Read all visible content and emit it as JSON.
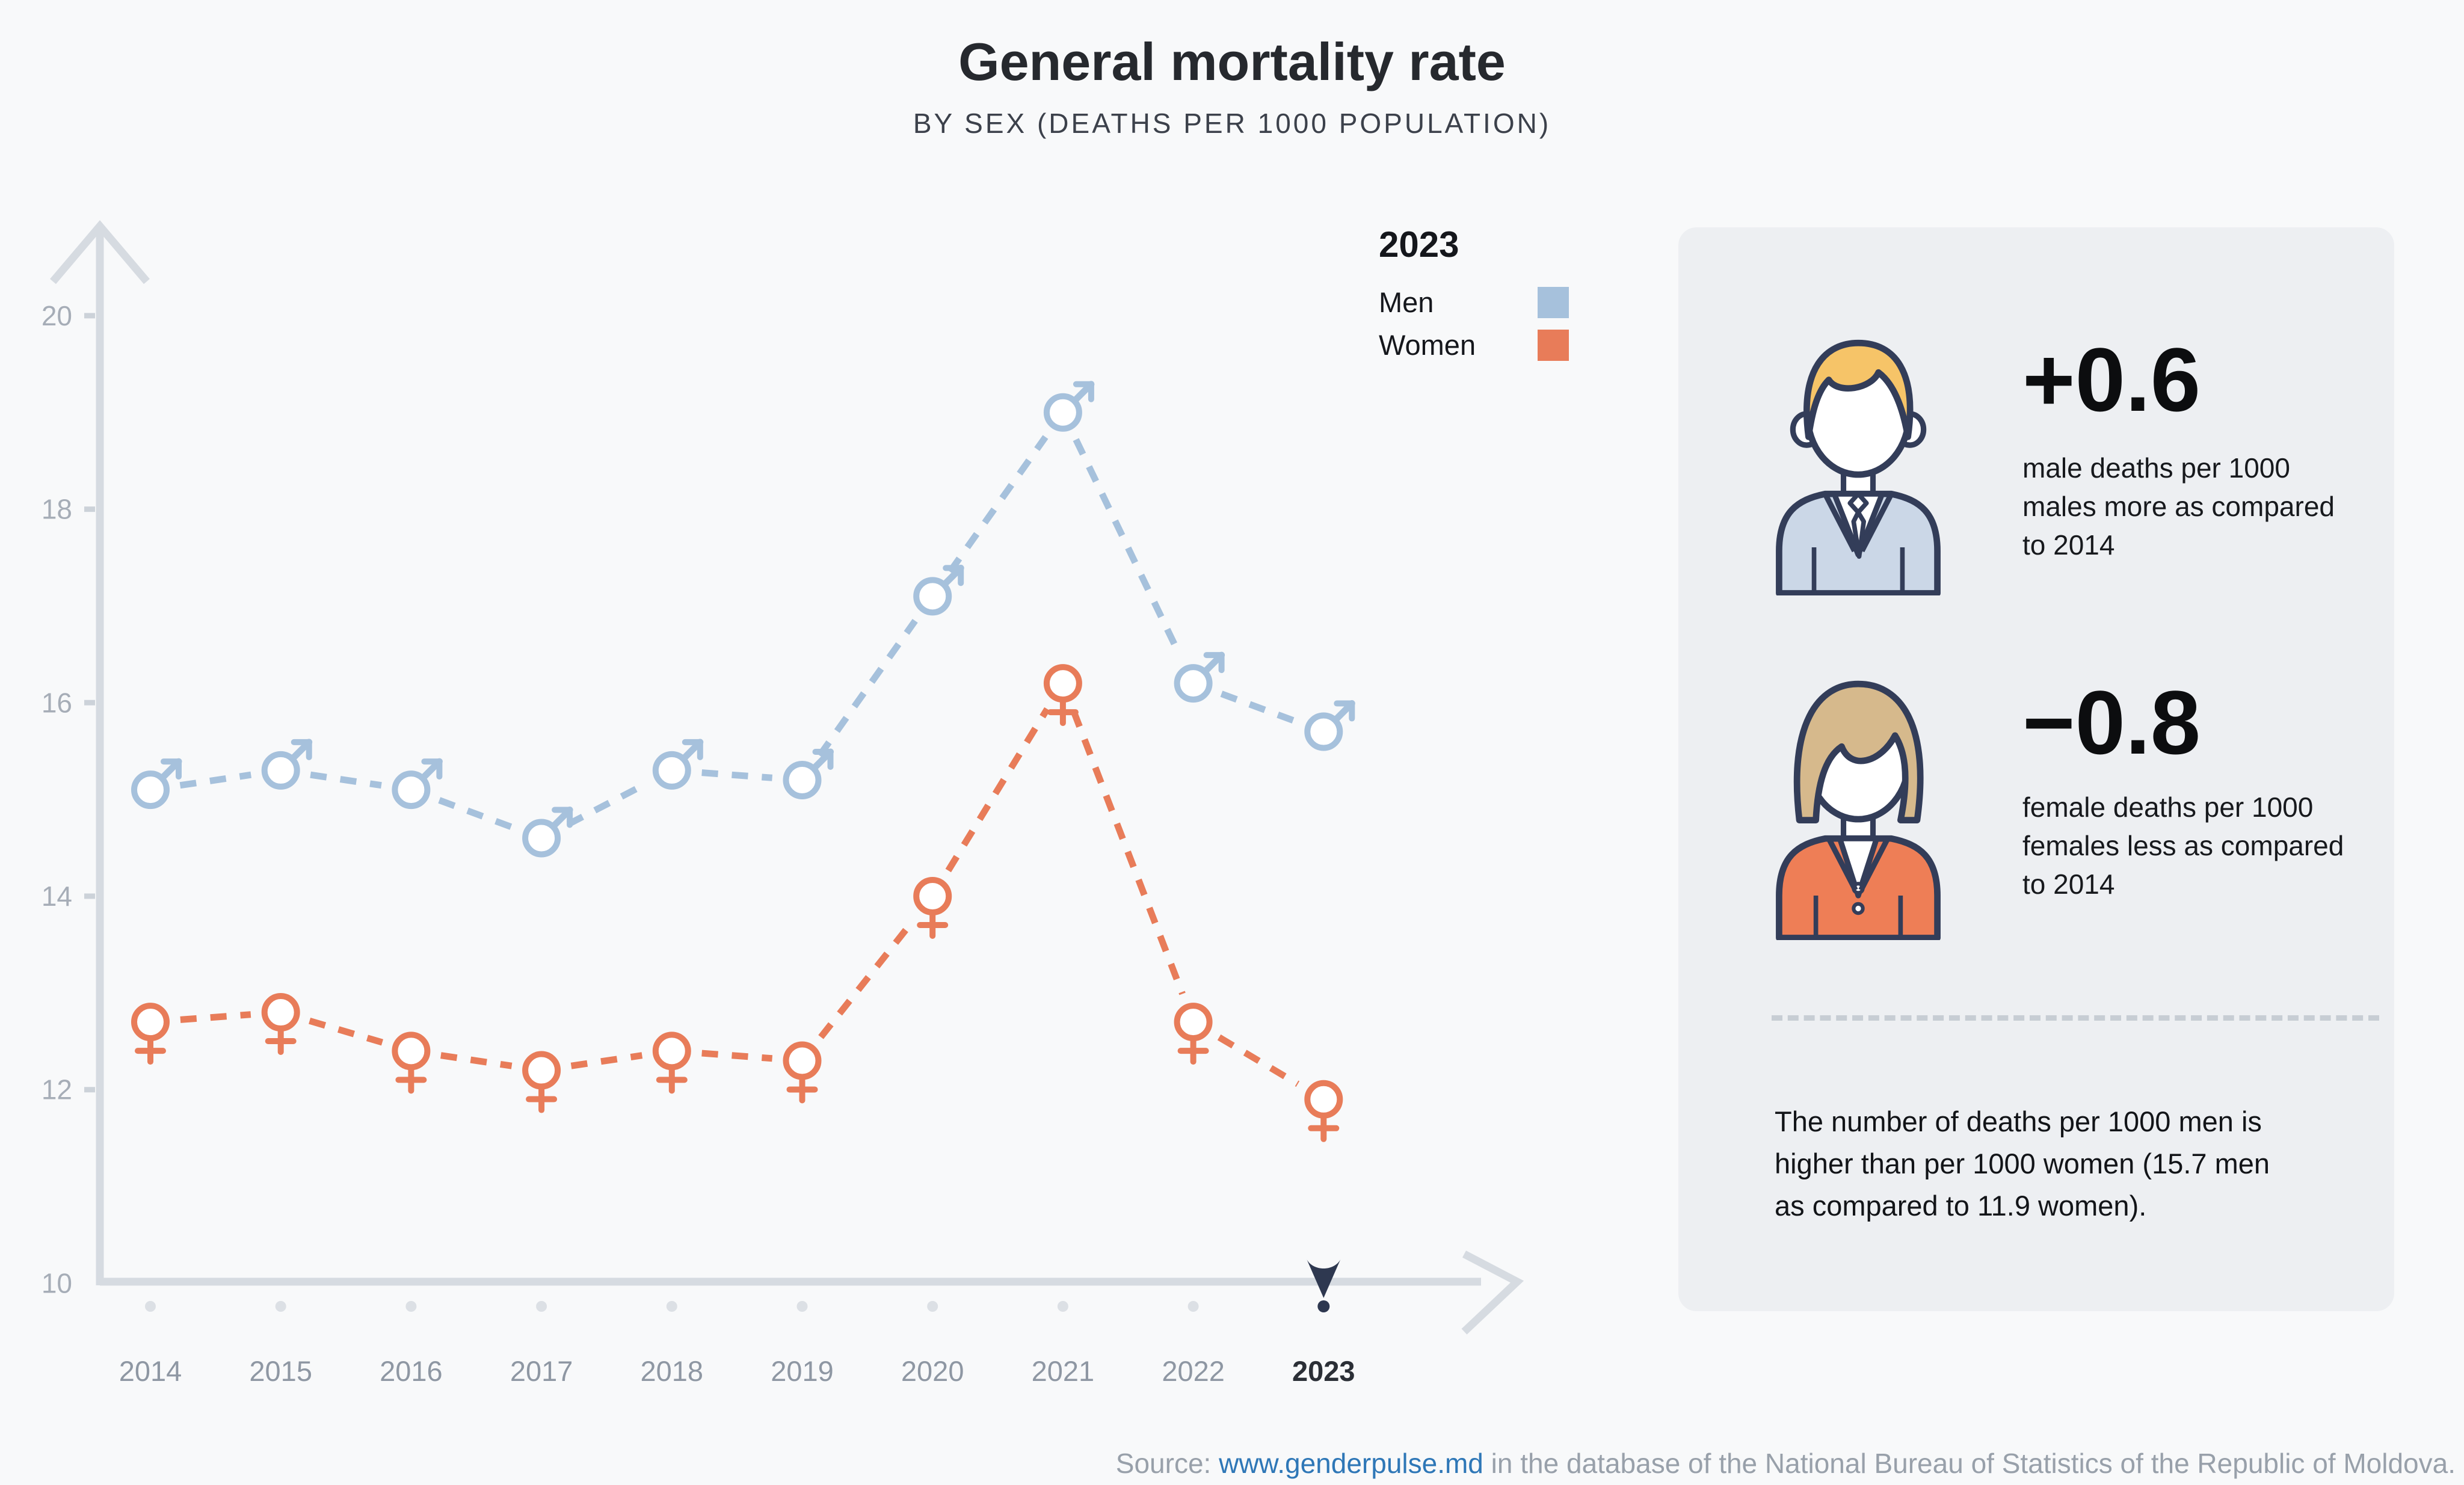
{
  "title": "General mortality rate",
  "subtitle": "BY SEX (DEATHS PER 1000 POPULATION)",
  "legend": {
    "year": "2023",
    "items": [
      {
        "label": "Men",
        "color": "#a6c1dc"
      },
      {
        "label": "Women",
        "color": "#e87c59"
      }
    ]
  },
  "chart_data": {
    "type": "line",
    "title": "General mortality rate",
    "subtitle": "BY SEX (DEATHS PER 1000 POPULATION)",
    "x": [
      "2014",
      "2015",
      "2016",
      "2017",
      "2018",
      "2019",
      "2020",
      "2021",
      "2022",
      "2023"
    ],
    "series": [
      {
        "name": "Men",
        "marker": "male",
        "color": "#a6c1dc",
        "values": [
          15.1,
          15.3,
          15.1,
          14.6,
          15.3,
          15.2,
          17.1,
          19.0,
          16.2,
          15.7
        ]
      },
      {
        "name": "Women",
        "marker": "female",
        "color": "#e87c59",
        "values": [
          12.7,
          12.8,
          12.4,
          12.2,
          12.4,
          12.3,
          14.0,
          16.2,
          12.7,
          11.9
        ]
      }
    ],
    "yticks": [
      10,
      12,
      14,
      16,
      18,
      20
    ],
    "ylim": [
      10,
      21
    ],
    "grid": false,
    "line_style": "dashed",
    "legend_position": "top-right",
    "highlight_year": "2023",
    "axis_color": "#d6dbe1",
    "tick_label_color": "#a6adb7",
    "year_label_color": "#8e97a3",
    "highlight_color": "#2e3850"
  },
  "panel": {
    "male_stat": {
      "value": "+0.6",
      "lines": [
        "male deaths per 1000",
        "males more as compared",
        "to 2014"
      ]
    },
    "female_stat": {
      "value": "−0.8",
      "lines": [
        "female deaths per 1000",
        "females less as compared",
        "to 2014"
      ]
    },
    "note_lines": [
      "The number of deaths per 1000 men is",
      "higher than per 1000 women (15.7 men",
      "as compared to 11.9 women)."
    ]
  },
  "source": {
    "prefix": "Source: ",
    "link": "www.genderpulse.md",
    "suffix": " in the database of the National Bureau of Statistics of the Republic of Moldova."
  }
}
